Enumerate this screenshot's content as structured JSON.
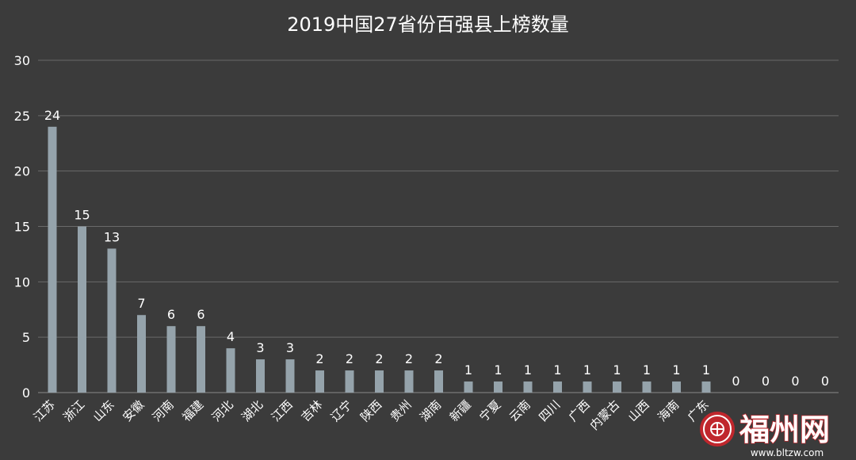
{
  "chart_data": {
    "type": "bar",
    "title": "2019中国27省份百强县上榜数量",
    "xlabel": "",
    "ylabel": "",
    "ylim": [
      0,
      30
    ],
    "yticks": [
      0,
      5,
      10,
      15,
      20,
      25,
      30
    ],
    "grid": true,
    "legend": "none",
    "bar_color": "#95a3ab",
    "grid_color": "#6a6a6a",
    "background": "#3b3b3b",
    "categories": [
      "江苏",
      "浙江",
      "山东",
      "安徽",
      "河南",
      "福建",
      "河北",
      "湖北",
      "江西",
      "吉林",
      "辽宁",
      "陕西",
      "贵州",
      "湖南",
      "新疆",
      "宁夏",
      "云南",
      "四川",
      "广西",
      "内蒙古",
      "山西",
      "海南",
      "广东",
      "",
      "",
      "",
      ""
    ],
    "values": [
      24,
      15,
      13,
      7,
      6,
      6,
      4,
      3,
      3,
      2,
      2,
      2,
      2,
      2,
      1,
      1,
      1,
      1,
      1,
      1,
      1,
      1,
      1,
      0,
      0,
      0,
      0
    ]
  },
  "watermark": {
    "text": "福州网",
    "url": "www.bltzw.com",
    "icon": "seal-logo-icon",
    "color": "#c0272d"
  }
}
